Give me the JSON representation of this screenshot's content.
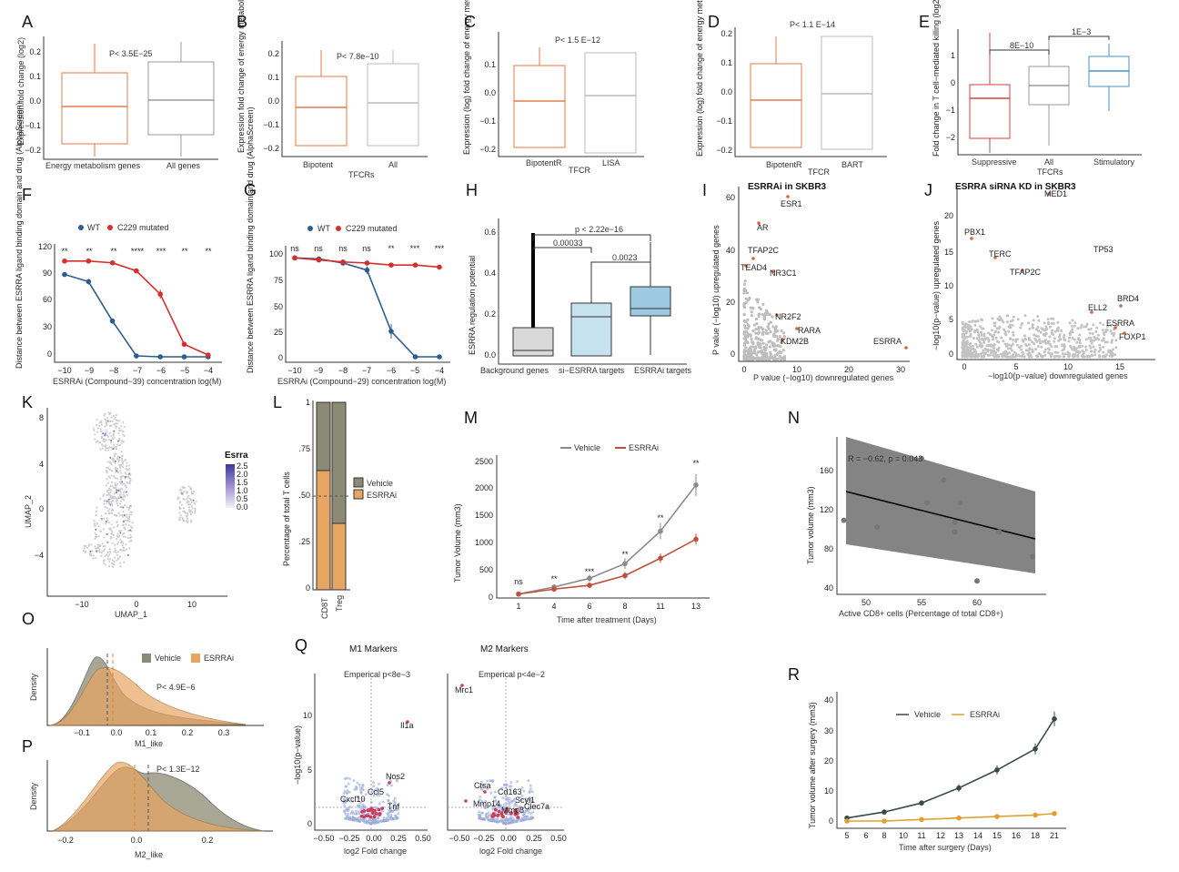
{
  "panels": {
    "A": {
      "label": "A",
      "ylabel": "Expression fold change (log2)",
      "categories": [
        "Energy metabolism genes",
        "All genes"
      ],
      "pvalue": "P< 3.5E−25",
      "yticks": [
        "0.2",
        "0.1",
        "0.0",
        "−0.1",
        "−0.2"
      ]
    },
    "B": {
      "label": "B",
      "ylabel": "Expression fold change of energy metabolism genes",
      "categories": [
        "Bipotent",
        "All"
      ],
      "xlabel": "TFCRs",
      "pvalue": "P< 7.8e−10",
      "yticks": [
        "0.2",
        "0.1",
        "0.0",
        "−0.1",
        "−0.2"
      ]
    },
    "C": {
      "label": "C",
      "ylabel": "Expression (log) fold change of energy metabolism genes",
      "categories": [
        "BipotentR",
        "LISA"
      ],
      "xlabel": "TFCR",
      "pvalue": "P< 1.5 E−12",
      "yticks": [
        "0.1",
        "0.0",
        "−0.1",
        "−0.2"
      ]
    },
    "D": {
      "label": "D",
      "ylabel": "Expression (log) fold change of energy metabolism genes",
      "categories": [
        "BipotentR",
        "BART"
      ],
      "xlabel": "TFCR",
      "pvalue": "P< 1.1 E−14",
      "yticks": [
        "0.2",
        "0.1",
        "0.0",
        "−0.1",
        "−0.2"
      ]
    },
    "E": {
      "label": "E",
      "ylabel": "Fold change in T cell−mediated killing (log2)",
      "categories": [
        "Suppressive",
        "All",
        "Stimulatory"
      ],
      "xlabel": "TFCRs",
      "p1": "8E−10",
      "p2": "1E−3",
      "yticks": [
        "1",
        "0",
        "−1",
        "−2"
      ]
    },
    "F": {
      "label": "F",
      "ylabel": "Distance between ESRRA ligand binding domain and drug (AlphaScreen)",
      "xlabel": "ESRRAi (Compound−39) concentration log(M)",
      "legend": [
        "WT",
        "C229 mutated"
      ],
      "xticks": [
        "−10",
        "−9",
        "−8",
        "−7",
        "−6",
        "−5",
        "−4"
      ],
      "yticks": [
        "120",
        "90",
        "60",
        "30",
        "0"
      ],
      "sig": [
        "**",
        "**",
        "**",
        "****",
        "***",
        "**",
        "**"
      ]
    },
    "G": {
      "label": "G",
      "ylabel": "Distance between ESRRA ligand binding domain and drug (AlphaScreen)",
      "xlabel": "ESRRAi (Compound−29) concentration log(M)",
      "legend": [
        "WT",
        "C229 mutated"
      ],
      "xticks": [
        "−10",
        "−9",
        "−8",
        "−7",
        "−6",
        "−5",
        "−4"
      ],
      "yticks": [
        "100",
        "75",
        "50",
        "25",
        "0"
      ],
      "sig": [
        "ns",
        "ns",
        "ns",
        "ns",
        "**",
        "***",
        "***"
      ]
    },
    "H": {
      "label": "H",
      "ylabel": "ESRRA regulation potential",
      "categories": [
        "Background genes",
        "si−ESRRA targets",
        "ESRRAi targets"
      ],
      "p1": "p < 2.22e−16",
      "p2": "0.00033",
      "p3": "0.0023",
      "yticks": [
        "0.6",
        "0.4",
        "0.2",
        "0.0"
      ]
    },
    "I": {
      "label": "I",
      "title": "ESRRAi in SKBR3",
      "xlabel": "P value (−log10) downregulated genes",
      "ylabel": "P value (−log10) upregulated genes",
      "xticks": [
        "0",
        "10",
        "20",
        "30"
      ],
      "yticks": [
        "60",
        "40",
        "20",
        "0"
      ],
      "genes": [
        "ESR1",
        "AR",
        "TFAP2C",
        "TEAD4",
        "NR3C1",
        "NR2F2",
        "RARA",
        "KDM2B",
        "ESRRA"
      ]
    },
    "J": {
      "label": "J",
      "title": "ESRRA siRNA KD in SKBR3",
      "xlabel": "−log10(p−value) downregulated genes",
      "ylabel": "−log10(p−value) upregulated genes",
      "xticks": [
        "0",
        "5",
        "10",
        "15"
      ],
      "yticks": [
        "20",
        "15",
        "10",
        "5",
        "0"
      ],
      "genes": [
        "MED1",
        "PBX1",
        "TERC",
        "TP53",
        "TFAP2C",
        "BRD4",
        "ELL2",
        "ESRRA",
        "FOXP1"
      ]
    },
    "K": {
      "label": "K",
      "xlabel": "UMAP_1",
      "ylabel": "UMAP_2",
      "legend_title": "Esrra",
      "legend_ticks": [
        "2.5",
        "2.0",
        "1.5",
        "1.0",
        "0.5",
        "0.0"
      ],
      "xticks": [
        "−10",
        "0",
        "10"
      ],
      "yticks": [
        "8",
        "4",
        "0",
        "−4"
      ]
    },
    "L": {
      "label": "L",
      "ylabel": "Percentage of total T cells",
      "categories": [
        "CD8T",
        "Treg"
      ],
      "legend": [
        "Vehicle",
        "ESRRAi"
      ],
      "yticks": [
        "1",
        ".75",
        ".50",
        ".25",
        "0"
      ]
    },
    "M": {
      "label": "M",
      "ylabel": "Tumor Volume (mm3)",
      "xlabel": "Time after treatment (Days)",
      "legend": [
        "Vehicle",
        "ESRRAi"
      ],
      "xticks": [
        "1",
        "4",
        "6",
        "8",
        "11",
        "13"
      ],
      "yticks": [
        "2500",
        "2000",
        "1500",
        "1000",
        "500",
        "0"
      ],
      "sig": [
        "ns",
        "**",
        "***",
        "**",
        "**",
        "**"
      ]
    },
    "N": {
      "label": "N",
      "ylabel": "Tumor volume (mm3)",
      "xlabel": "Active CD8+ cells (Percentage of total CD8+)",
      "stat": "R = −0.62, p = 0.043",
      "xticks": [
        "50",
        "55",
        "60"
      ],
      "yticks": [
        "160",
        "120",
        "80",
        "40"
      ]
    },
    "O": {
      "label": "O",
      "ylabel": "Density",
      "xlabel": "M1_like",
      "legend": [
        "Vehicle",
        "ESRRAi"
      ],
      "pvalue": "P< 4.9E−6",
      "xticks": [
        "−0.1",
        "0.0",
        "0.1",
        "0.2",
        "0.3"
      ]
    },
    "P": {
      "label": "P",
      "ylabel": "Density",
      "xlabel": "M2_like",
      "pvalue": "P< 1.3E−12",
      "xticks": [
        "−0.2",
        "0.0",
        "0.2"
      ]
    },
    "Q": {
      "label": "Q",
      "title1": "M1 Markers",
      "title2": "M2 Markers",
      "emp1": "Emperical p<8e−3",
      "emp2": "Emperical p<4e−2",
      "ylabel": "−log10(p−value)",
      "xlabel": "log2 Fold change",
      "xticks": [
        "−0.50",
        "−0.25",
        "0.00",
        "0.25",
        "0.50"
      ],
      "yticks": [
        "10",
        "5",
        "0"
      ],
      "genes1": [
        "Il1a",
        "Nos2",
        "Ccl5",
        "Cxcl10",
        "Tnf"
      ],
      "genes2": [
        "Mrc1",
        "Ctsa",
        "Cd163",
        "Scyl1",
        "Mmp14",
        "Mmp8",
        "Clec7a"
      ]
    },
    "R": {
      "label": "R",
      "ylabel": "Tumor volume after surgery (mm3)",
      "xlabel": "Time after surgery (Days)",
      "legend": [
        "Vehicle",
        "ESRRAi"
      ],
      "xticks": [
        "5",
        "6",
        "8",
        "10",
        "11",
        "12",
        "13",
        "14",
        "15",
        "16",
        "18",
        "21"
      ],
      "yticks": [
        "40",
        "30",
        "20",
        "10",
        "0"
      ]
    }
  },
  "chart_data": [
    {
      "type": "box",
      "panel": "A",
      "categories": [
        "Energy metabolism genes",
        "All genes"
      ],
      "series": [
        {
          "name": "Energy metabolism genes",
          "q1": -0.17,
          "median": -0.02,
          "q3": 0.11,
          "min": -0.23,
          "max": 0.23
        },
        {
          "name": "All genes",
          "q1": -0.14,
          "median": 0.0,
          "q3": 0.16,
          "min": -0.2,
          "max": 0.22
        }
      ],
      "ylim": [
        -0.22,
        0.23
      ]
    },
    {
      "type": "line",
      "panel": "F",
      "x": [
        -10,
        -9,
        -8,
        -7,
        -6,
        -5,
        -4
      ],
      "series": [
        {
          "name": "WT",
          "values": [
            92,
            84,
            40,
            1,
            0,
            0,
            0
          ]
        },
        {
          "name": "C229 mutated",
          "values": [
            107,
            107,
            105,
            96,
            70,
            14,
            2
          ]
        }
      ],
      "ylim": [
        0,
        120
      ]
    },
    {
      "type": "line",
      "panel": "G",
      "x": [
        -10,
        -9,
        -8,
        -7,
        -6,
        -5,
        -4
      ],
      "series": [
        {
          "name": "WT",
          "values": [
            97,
            96,
            92,
            85,
            25,
            0,
            0
          ]
        },
        {
          "name": "C229 mutated",
          "values": [
            97,
            95,
            93,
            92,
            90,
            90,
            88
          ]
        }
      ],
      "ylim": [
        0,
        100
      ]
    },
    {
      "type": "line",
      "panel": "M",
      "x": [
        1,
        4,
        6,
        8,
        11,
        13
      ],
      "series": [
        {
          "name": "Vehicle",
          "values": [
            40,
            170,
            330,
            600,
            1200,
            2050
          ]
        },
        {
          "name": "ESRRAi",
          "values": [
            40,
            130,
            200,
            380,
            700,
            1050
          ]
        }
      ],
      "ylim": [
        0,
        2500
      ]
    },
    {
      "type": "scatter",
      "panel": "N",
      "x": [
        48,
        51,
        55,
        55.5,
        57,
        58,
        58,
        58.5,
        60,
        62,
        65
      ],
      "y": [
        112,
        105,
        175,
        130,
        153,
        110,
        100,
        130,
        50,
        100,
        75
      ],
      "ylim": [
        40,
        180
      ]
    },
    {
      "type": "line",
      "panel": "R",
      "x": [
        5,
        8,
        11,
        13,
        15,
        18,
        21
      ],
      "series": [
        {
          "name": "Vehicle",
          "values": [
            1,
            3,
            6,
            11,
            17,
            24,
            34
          ]
        },
        {
          "name": "ESRRAi",
          "values": [
            0,
            0,
            0.5,
            1,
            1.5,
            2,
            2.5
          ]
        }
      ],
      "ylim": [
        0,
        40
      ]
    }
  ],
  "colors": {
    "orange": "#e07b4a",
    "blue": "#2c5d8f",
    "red": "#d62d2d",
    "grey": "#8a8a8a",
    "lightblue": "#a7cfe4",
    "olive": "#8c8a74",
    "tan": "#e7a562"
  }
}
